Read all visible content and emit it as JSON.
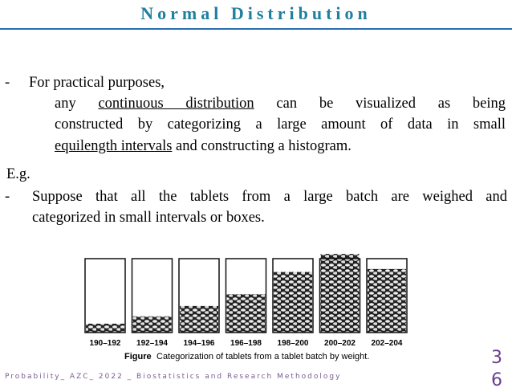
{
  "header": {
    "title": "Normal Distribution"
  },
  "body": {
    "bullet1": {
      "marker": "-",
      "lead": "For practical purposes,",
      "line1": {
        "start": "any",
        "underlined": "continuous distribution",
        "end": "can be visualized as being"
      },
      "line2": "constructed by categorizing a large amount of data in small",
      "line3": {
        "underlined": "equilength intervals",
        "end": "and constructing a histogram."
      }
    },
    "example": "E.g.",
    "bullet2": {
      "marker": "-",
      "lines": [
        "Suppose that all the tablets from a large batch are weighed and",
        "categorized in small intervals or boxes."
      ]
    }
  },
  "figure": {
    "box_labels": [
      "190–192",
      "192–194",
      "194–196",
      "196–198",
      "198–200",
      "200–202",
      "202–204"
    ],
    "caption_label": "Figure",
    "caption": "Categorization of tablets from a tablet batch by weight."
  },
  "footer": {
    "text": "Probability_ AZC_ 2022 _ Biostatistics and Research Methodology",
    "page_number": "36"
  }
}
